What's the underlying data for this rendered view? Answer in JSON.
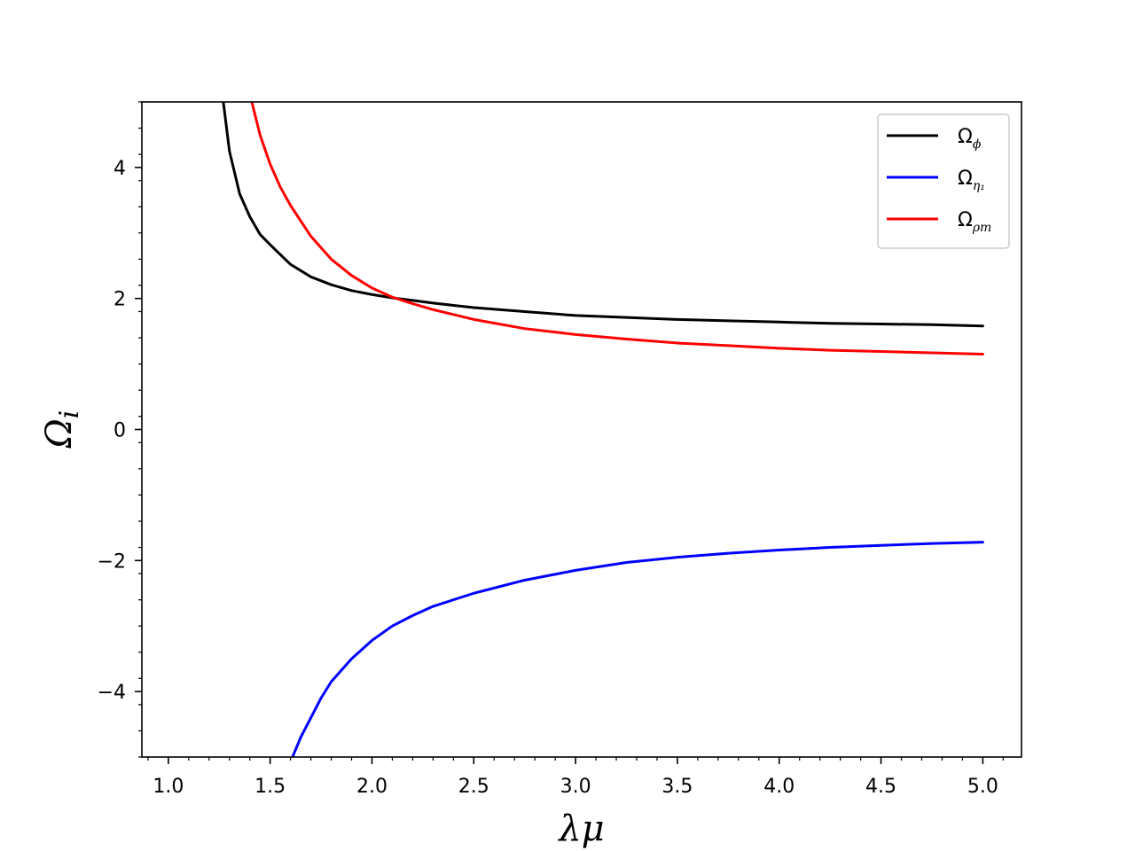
{
  "chart_data": {
    "type": "line",
    "xlabel": "λμ",
    "ylabel": "Ω",
    "ylabel_sub": "i",
    "xlim": [
      0.87,
      5.19
    ],
    "ylim": [
      -5,
      5
    ],
    "xticks": [
      1.0,
      1.5,
      2.0,
      2.5,
      3.0,
      3.5,
      4.0,
      4.5,
      5.0
    ],
    "xtick_labels": [
      "1.0",
      "1.5",
      "2.0",
      "2.5",
      "3.0",
      "3.5",
      "4.0",
      "4.5",
      "5.0"
    ],
    "yticks": [
      -4,
      -2,
      0,
      2,
      4
    ],
    "ytick_labels": [
      "−4",
      "−2",
      "0",
      "2",
      "4"
    ],
    "x_minor_step": 0.1,
    "y_minor_step": 0.4,
    "legend_position": "top-right",
    "grid": false,
    "series": [
      {
        "name": "Ω",
        "name_sub": "ϕ",
        "color": "#000000",
        "x": [
          1.27,
          1.3,
          1.35,
          1.4,
          1.45,
          1.5,
          1.6,
          1.7,
          1.8,
          1.9,
          2.0,
          2.1,
          2.2,
          2.3,
          2.5,
          2.75,
          3.0,
          3.25,
          3.5,
          3.75,
          4.0,
          4.25,
          4.5,
          4.75,
          5.0
        ],
        "y": [
          5.0,
          4.25,
          3.6,
          3.25,
          2.98,
          2.82,
          2.52,
          2.33,
          2.21,
          2.12,
          2.06,
          2.01,
          1.97,
          1.93,
          1.86,
          1.8,
          1.74,
          1.71,
          1.68,
          1.66,
          1.64,
          1.62,
          1.61,
          1.6,
          1.58
        ]
      },
      {
        "name": "Ω",
        "name_sub": "η₁",
        "color": "#0000ff",
        "x": [
          1.61,
          1.65,
          1.7,
          1.75,
          1.8,
          1.9,
          2.0,
          2.1,
          2.2,
          2.3,
          2.5,
          2.75,
          3.0,
          3.25,
          3.5,
          3.75,
          4.0,
          4.25,
          4.5,
          4.75,
          5.0
        ],
        "y": [
          -5.0,
          -4.7,
          -4.4,
          -4.1,
          -3.85,
          -3.5,
          -3.22,
          -3.0,
          -2.84,
          -2.7,
          -2.5,
          -2.3,
          -2.15,
          -2.03,
          -1.95,
          -1.89,
          -1.84,
          -1.8,
          -1.77,
          -1.74,
          -1.72
        ]
      },
      {
        "name": "Ω",
        "name_sub": "ρm",
        "color": "#ff0000",
        "x": [
          1.41,
          1.45,
          1.5,
          1.55,
          1.6,
          1.7,
          1.8,
          1.9,
          2.0,
          2.1,
          2.2,
          2.3,
          2.5,
          2.75,
          3.0,
          3.25,
          3.5,
          3.75,
          4.0,
          4.25,
          4.5,
          4.75,
          5.0
        ],
        "y": [
          5.0,
          4.5,
          4.05,
          3.7,
          3.42,
          2.95,
          2.6,
          2.35,
          2.16,
          2.02,
          1.92,
          1.83,
          1.68,
          1.54,
          1.45,
          1.38,
          1.32,
          1.28,
          1.24,
          1.21,
          1.19,
          1.17,
          1.15
        ]
      }
    ]
  }
}
